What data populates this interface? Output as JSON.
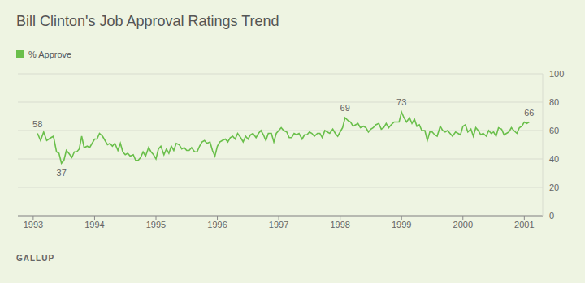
{
  "chart_data": {
    "type": "line",
    "title": "Bill Clinton's Job Approval Ratings Trend",
    "source": "GALLUP",
    "legend": "top left",
    "grid": true,
    "x": [
      1993.07,
      1993.12,
      1993.17,
      1993.22,
      1993.29,
      1993.33,
      1993.38,
      1993.42,
      1993.46,
      1993.5,
      1993.54,
      1993.58,
      1993.63,
      1993.67,
      1993.71,
      1993.75,
      1993.79,
      1993.83,
      1993.88,
      1993.92,
      1993.96,
      1994,
      1994.04,
      1994.08,
      1994.13,
      1994.17,
      1994.21,
      1994.25,
      1994.29,
      1994.33,
      1994.38,
      1994.42,
      1994.46,
      1994.5,
      1994.54,
      1994.58,
      1994.63,
      1994.67,
      1994.71,
      1994.75,
      1994.79,
      1994.83,
      1994.88,
      1994.92,
      1994.96,
      1995,
      1995.04,
      1995.08,
      1995.13,
      1995.17,
      1995.21,
      1995.25,
      1995.29,
      1995.33,
      1995.38,
      1995.42,
      1995.46,
      1995.5,
      1995.54,
      1995.58,
      1995.63,
      1995.67,
      1995.71,
      1995.75,
      1995.79,
      1995.83,
      1995.88,
      1995.92,
      1995.96,
      1996,
      1996.04,
      1996.08,
      1996.13,
      1996.17,
      1996.21,
      1996.25,
      1996.29,
      1996.33,
      1996.38,
      1996.42,
      1996.46,
      1996.5,
      1996.54,
      1996.58,
      1996.63,
      1996.67,
      1996.71,
      1996.75,
      1996.79,
      1996.83,
      1996.88,
      1996.92,
      1996.96,
      1997,
      1997.04,
      1997.08,
      1997.13,
      1997.17,
      1997.21,
      1997.25,
      1997.29,
      1997.33,
      1997.38,
      1997.42,
      1997.46,
      1997.5,
      1997.54,
      1997.58,
      1997.63,
      1997.67,
      1997.71,
      1997.75,
      1997.79,
      1997.83,
      1997.88,
      1997.92,
      1997.96,
      1998,
      1998.04,
      1998.08,
      1998.13,
      1998.17,
      1998.21,
      1998.25,
      1998.29,
      1998.33,
      1998.38,
      1998.42,
      1998.46,
      1998.5,
      1998.54,
      1998.58,
      1998.63,
      1998.67,
      1998.71,
      1998.75,
      1998.79,
      1998.83,
      1998.88,
      1998.92,
      1998.96,
      1999,
      1999.04,
      1999.08,
      1999.13,
      1999.17,
      1999.21,
      1999.25,
      1999.29,
      1999.33,
      1999.38,
      1999.42,
      1999.46,
      1999.5,
      1999.54,
      1999.58,
      1999.63,
      1999.67,
      1999.71,
      1999.75,
      1999.79,
      1999.83,
      1999.88,
      1999.92,
      1999.96,
      2000,
      2000.04,
      2000.08,
      2000.13,
      2000.17,
      2000.21,
      2000.25,
      2000.29,
      2000.33,
      2000.38,
      2000.42,
      2000.46,
      2000.5,
      2000.54,
      2000.58,
      2000.63,
      2000.67,
      2000.71,
      2000.75,
      2000.79,
      2000.83,
      2000.88,
      2000.92,
      2000.96,
      2001,
      2001.04,
      2001.08
    ],
    "series": [
      {
        "name": "% Approve",
        "color": "#6abf4b",
        "values": [
          58,
          53,
          59,
          53,
          55,
          56,
          45,
          44,
          37,
          39,
          46,
          44,
          41,
          45,
          45,
          47,
          56,
          48,
          49,
          48,
          51,
          54,
          54,
          58,
          56,
          53,
          50,
          51,
          49,
          51,
          46,
          51,
          45,
          43,
          44,
          42,
          43,
          39,
          39,
          41,
          45,
          42,
          48,
          45,
          43,
          40,
          47,
          49,
          43,
          47,
          44,
          49,
          46,
          51,
          50,
          47,
          48,
          46,
          46,
          48,
          45,
          45,
          49,
          52,
          53,
          51,
          52,
          46,
          42,
          49,
          52,
          53,
          54,
          52,
          55,
          56,
          54,
          58,
          55,
          52,
          56,
          54,
          57,
          58,
          55,
          58,
          60,
          57,
          53,
          58,
          58,
          52,
          58,
          60,
          62,
          60,
          59,
          55,
          55,
          58,
          57,
          58,
          54,
          57,
          57,
          59,
          58,
          56,
          58,
          58,
          55,
          60,
          59,
          58,
          61,
          58,
          56,
          59,
          62,
          69,
          67,
          66,
          63,
          64,
          65,
          62,
          63,
          62,
          59,
          61,
          62,
          64,
          65,
          61,
          62,
          65,
          62,
          64,
          66,
          66,
          66,
          73,
          69,
          66,
          69,
          65,
          68,
          63,
          64,
          60,
          60,
          53,
          59,
          59,
          57,
          56,
          63,
          60,
          59,
          60,
          58,
          56,
          59,
          58,
          57,
          63,
          64,
          59,
          61,
          56,
          62,
          60,
          57,
          58,
          56,
          60,
          58,
          59,
          56,
          62,
          61,
          57,
          58,
          59,
          62,
          60,
          58,
          62,
          63,
          66,
          65,
          66
        ]
      }
    ],
    "annotations": [
      {
        "x": 1993.07,
        "y": 58
      },
      {
        "x": 1993.46,
        "y": 37
      },
      {
        "x": 1998.08,
        "y": 69
      },
      {
        "x": 1999.0,
        "y": 73
      },
      {
        "x": 2001.08,
        "y": 66
      }
    ],
    "xlim": [
      1992.75,
      2001.3
    ],
    "xticks": [
      1993,
      1994,
      1995,
      1996,
      1997,
      1998,
      1999,
      2000,
      2001
    ],
    "ylim": [
      0,
      100
    ],
    "yticks": [
      0,
      20,
      40,
      60,
      80,
      100
    ]
  }
}
